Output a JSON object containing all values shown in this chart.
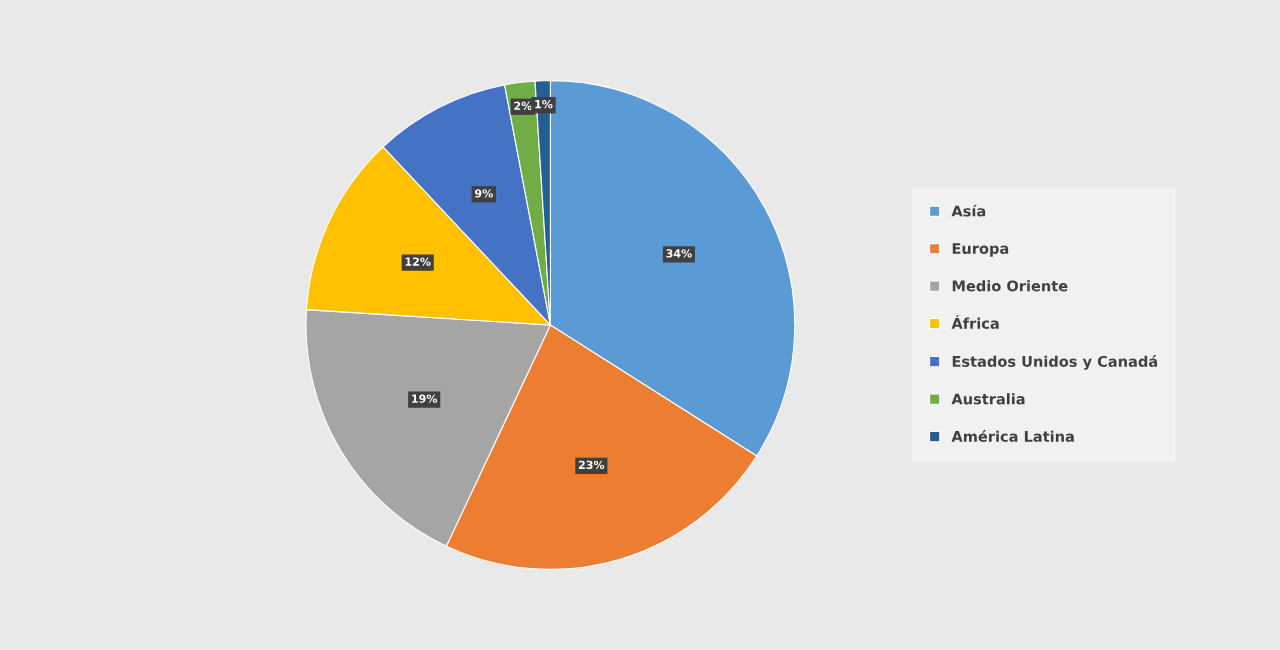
{
  "chart_data": {
    "type": "pie",
    "categories": [
      "Asía",
      "Europa",
      "Medio Oriente",
      "África",
      "Estados Unidos y Canadá",
      "Australia",
      "América Latina"
    ],
    "values": [
      34,
      23,
      19,
      12,
      9,
      2,
      1
    ],
    "colors": [
      "#5b9bd5",
      "#ed7d31",
      "#a5a5a5",
      "#ffc000",
      "#4472c4",
      "#70ad47",
      "#255e91"
    ],
    "value_labels": [
      "34%",
      "23%",
      "19%",
      "12%",
      "9%",
      "2%",
      "1%"
    ],
    "legend": "right"
  }
}
